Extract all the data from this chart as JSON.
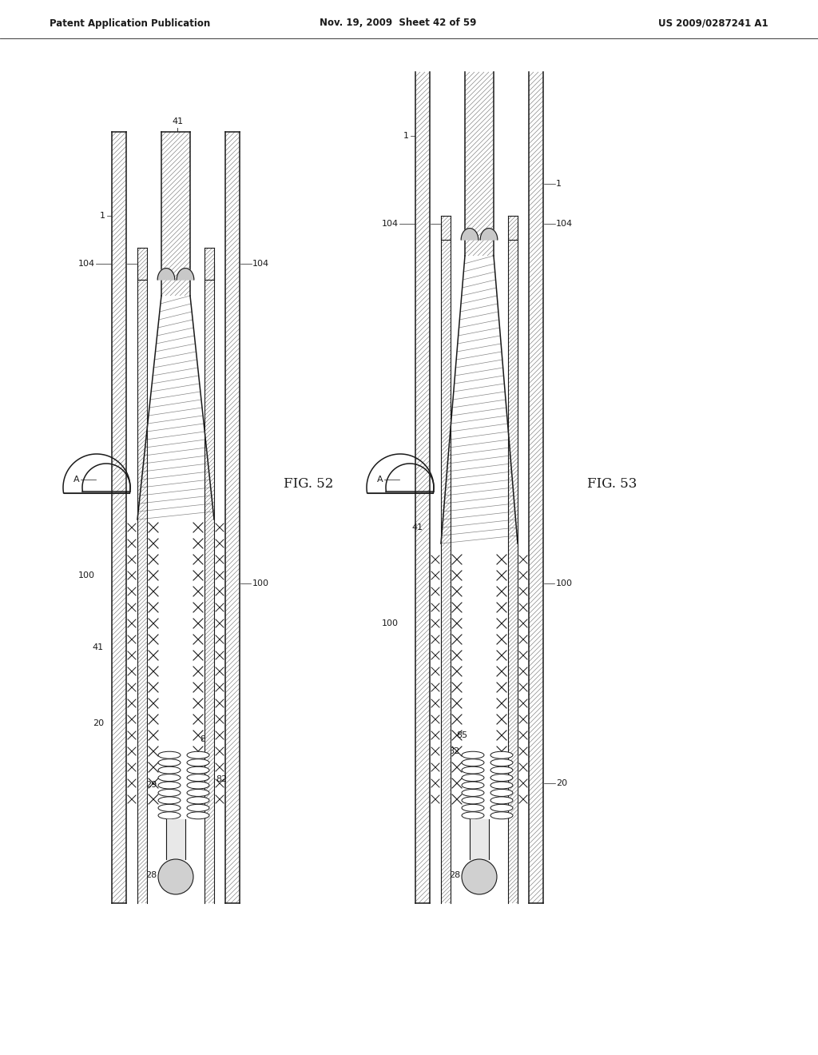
{
  "title_left": "Patent Application Publication",
  "title_mid": "Nov. 19, 2009  Sheet 42 of 59",
  "title_right": "US 2009/0287241 A1",
  "fig52_label": "FIG. 52",
  "fig53_label": "FIG. 53",
  "bg_color": "#ffffff",
  "line_color": "#1a1a1a",
  "gray_fill": "#c8c8c8",
  "hatch_gray": "#888888"
}
